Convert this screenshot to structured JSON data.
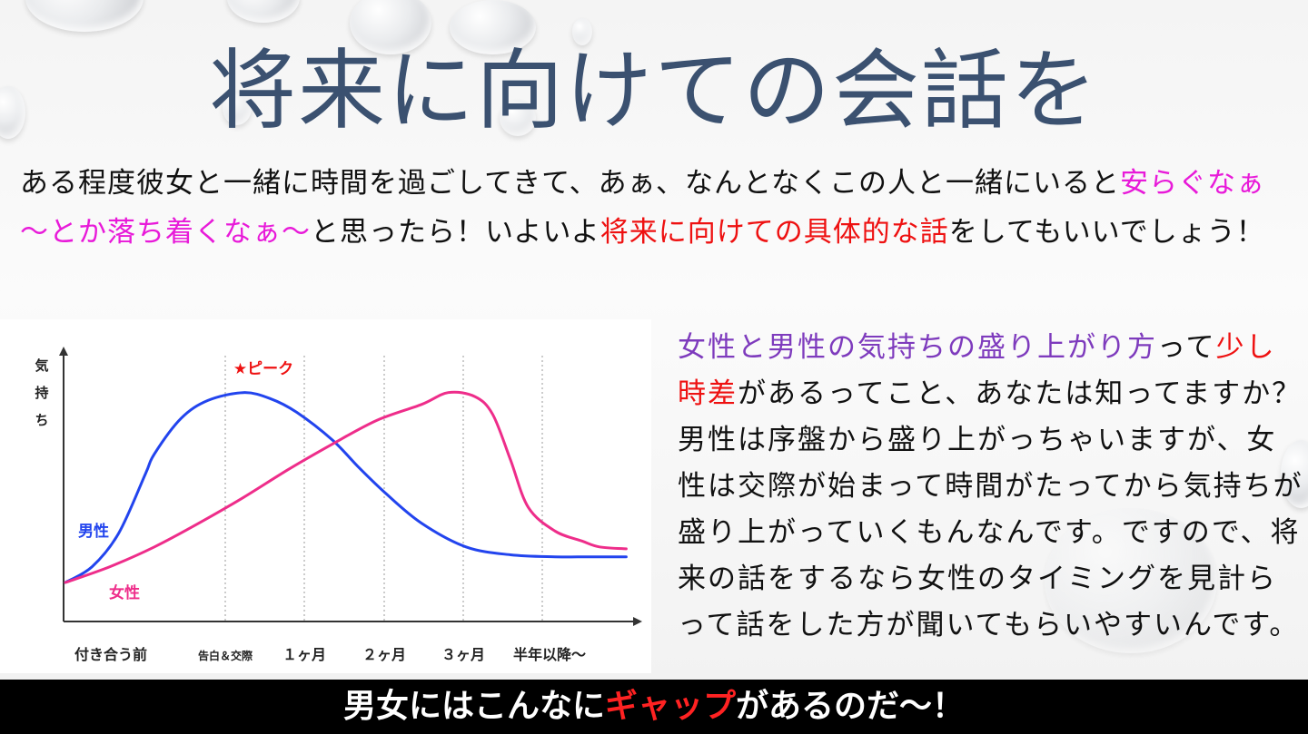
{
  "title": "将来に向けての会話を",
  "intro": {
    "t1": "ある程度彼女と一緒に時間を過ごしてきて、あぁ、なんとなくこの人と一緒にいると",
    "t2": "安らぐなぁ～とか落ち着くなぁ～",
    "t3": "と思ったら！いよいよ",
    "t4": "将来に向けての具体的な話",
    "t5": "をしてもいいでしょう！"
  },
  "chart_data": {
    "type": "line",
    "ylabel": "気持ち",
    "categories": [
      "付き合う前",
      "告白＆交際",
      "１ヶ月",
      "２ヶ月",
      "３ヶ月",
      "半年以降～"
    ],
    "peak_label": "★ピーク",
    "series": [
      {
        "name": "男性",
        "color": "#2244ee",
        "x": [
          0,
          0.3,
          0.6,
          0.9,
          1.0,
          1.3,
          1.6,
          2.0,
          2.3,
          2.6,
          3.0,
          3.3,
          3.6,
          4.0,
          4.5,
          5.0,
          5.5,
          6.0,
          6.3
        ],
        "values": [
          0.0,
          0.08,
          0.25,
          0.55,
          0.65,
          0.83,
          0.92,
          0.96,
          0.93,
          0.86,
          0.72,
          0.58,
          0.45,
          0.3,
          0.18,
          0.14,
          0.13,
          0.13,
          0.13
        ]
      },
      {
        "name": "女性",
        "color": "#ee2d8a",
        "x": [
          0,
          0.5,
          1.0,
          1.5,
          2.0,
          2.5,
          3.0,
          3.5,
          4.0,
          4.3,
          4.6,
          4.8,
          5.0,
          5.2,
          5.5,
          5.8,
          6.0,
          6.3
        ],
        "values": [
          0.0,
          0.08,
          0.18,
          0.3,
          0.43,
          0.57,
          0.7,
          0.82,
          0.9,
          0.96,
          0.94,
          0.85,
          0.62,
          0.38,
          0.26,
          0.21,
          0.18,
          0.17
        ]
      }
    ]
  },
  "right": {
    "r1": "女性と男性の気持ちの盛り上がり方",
    "r2": "って",
    "r3": "少し時差",
    "r4": "があるってこと、あなたは知ってますか？男性は序盤から盛り上がっちゃいますが、女性は交際が始まって時間がたってから気持ちが盛り上がっていくもんなんです。ですので、将来の話をするなら女性のタイミングを見計らって話をした方が聞いてもらいやすいんです。"
  },
  "bottom": {
    "b1": "男女にはこんなに",
    "b2": "ギャップ",
    "b3": "があるのだ～！"
  }
}
